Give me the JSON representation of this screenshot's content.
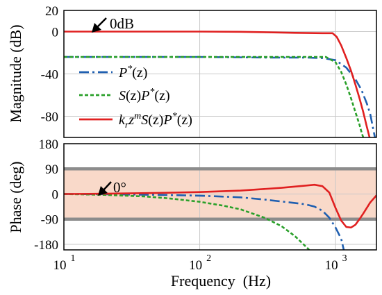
{
  "chart_data": [
    {
      "type": "line",
      "panel": "magnitude",
      "xscale": "log",
      "xlim": [
        10,
        2000
      ],
      "ylim": [
        -100,
        20
      ],
      "yticks": [
        20,
        0,
        -40,
        -80
      ],
      "ylabel": "Magnitude (dB)",
      "grid": true,
      "legend_position": "left",
      "annotation": "0dB",
      "series": [
        {
          "name": "P*(z)",
          "legend_parts": [
            [
              "P",
              ""
            ],
            [
              "*",
              "sup"
            ],
            [
              "(z)",
              ""
            ]
          ],
          "color": "#1f5fb0",
          "style": "dashdot",
          "points": [
            [
              10,
              -24
            ],
            [
              100,
              -24
            ],
            [
              300,
              -24.5
            ],
            [
              600,
              -24.5
            ],
            [
              800,
              -25
            ],
            [
              1000,
              -27
            ],
            [
              1200,
              -34
            ],
            [
              1400,
              -45
            ],
            [
              1550,
              -55
            ],
            [
              1700,
              -68
            ],
            [
              1800,
              -78
            ],
            [
              1880,
              -90
            ],
            [
              1950,
              -100
            ]
          ]
        },
        {
          "name": "S(z)P*(z)",
          "legend_parts": [
            [
              "S",
              ""
            ],
            [
              "(z)",
              ""
            ],
            [
              "P",
              ""
            ],
            [
              "*",
              "sup"
            ],
            [
              "(z)",
              ""
            ]
          ],
          "color": "#2aa02a",
          "style": "dotted",
          "points": [
            [
              10,
              -24
            ],
            [
              100,
              -24
            ],
            [
              300,
              -24
            ],
            [
              600,
              -24
            ],
            [
              850,
              -24
            ],
            [
              1000,
              -29
            ],
            [
              1100,
              -38
            ],
            [
              1200,
              -50
            ],
            [
              1300,
              -63
            ],
            [
              1400,
              -76
            ],
            [
              1500,
              -88
            ],
            [
              1560,
              -96
            ],
            [
              1600,
              -100
            ]
          ]
        },
        {
          "name": "k_r z^m S(z)P*(z)",
          "legend_parts": [
            [
              "k",
              ""
            ],
            [
              "r",
              "sub"
            ],
            [
              "z",
              ""
            ],
            [
              "m",
              "sup"
            ],
            [
              "S",
              ""
            ],
            [
              "(z)",
              ""
            ],
            [
              "P",
              ""
            ],
            [
              "*",
              "sup"
            ],
            [
              "(z)",
              ""
            ]
          ],
          "color": "#e02020",
          "style": "solid",
          "points": [
            [
              10,
              0
            ],
            [
              100,
              0
            ],
            [
              200,
              -0.2
            ],
            [
              500,
              -1.2
            ],
            [
              800,
              -1.5
            ],
            [
              950,
              -1.5
            ],
            [
              1020,
              -5
            ],
            [
              1100,
              -13
            ],
            [
              1200,
              -25
            ],
            [
              1300,
              -37
            ],
            [
              1400,
              -50
            ],
            [
              1500,
              -63
            ],
            [
              1600,
              -76
            ],
            [
              1700,
              -90
            ],
            [
              1780,
              -100
            ]
          ]
        }
      ]
    },
    {
      "type": "line",
      "panel": "phase",
      "xscale": "log",
      "xlim": [
        10,
        2000
      ],
      "ylim": [
        -200,
        180
      ],
      "yticks": [
        180,
        90,
        0,
        -90,
        -180
      ],
      "ylabel": "Phase (deg)",
      "xlabel": "Frequency  (Hz)",
      "xticks": [
        {
          "value": 10,
          "label": "10",
          "exp": "1"
        },
        {
          "value": 100,
          "label": "10",
          "exp": "2"
        },
        {
          "value": 1000,
          "label": "10",
          "exp": "3"
        }
      ],
      "grid": true,
      "shaded_band": [
        -90,
        90
      ],
      "reference_lines": [
        90,
        -90
      ],
      "annotation": "0°",
      "series": [
        {
          "name": "P*(z)",
          "color": "#1f5fb0",
          "style": "dashdot",
          "points": [
            [
              10,
              0
            ],
            [
              20,
              -1
            ],
            [
              50,
              -3
            ],
            [
              100,
              -6
            ],
            [
              200,
              -12
            ],
            [
              300,
              -20
            ],
            [
              400,
              -27
            ],
            [
              500,
              -32
            ],
            [
              600,
              -37
            ],
            [
              700,
              -45
            ],
            [
              800,
              -60
            ],
            [
              900,
              -85
            ],
            [
              1000,
              -120
            ],
            [
              1100,
              -160
            ],
            [
              1150,
              -200
            ]
          ]
        },
        {
          "name": "S(z)P*(z)",
          "color": "#2aa02a",
          "style": "dotted",
          "points": [
            [
              10,
              0
            ],
            [
              20,
              -3
            ],
            [
              40,
              -9
            ],
            [
              60,
              -16
            ],
            [
              100,
              -28
            ],
            [
              150,
              -42
            ],
            [
              200,
              -55
            ],
            [
              300,
              -85
            ],
            [
              400,
              -115
            ],
            [
              500,
              -150
            ],
            [
              580,
              -180
            ],
            [
              640,
              -200
            ]
          ]
        },
        {
          "name": "k_r z^m S(z)P*(z)",
          "color": "#e02020",
          "style": "solid",
          "points": [
            [
              10,
              0
            ],
            [
              20,
              1
            ],
            [
              50,
              4
            ],
            [
              100,
              7
            ],
            [
              200,
              12
            ],
            [
              400,
              22
            ],
            [
              600,
              30
            ],
            [
              700,
              33
            ],
            [
              800,
              28
            ],
            [
              900,
              5
            ],
            [
              1000,
              -50
            ],
            [
              1100,
              -95
            ],
            [
              1200,
              -118
            ],
            [
              1300,
              -120
            ],
            [
              1400,
              -110
            ],
            [
              1500,
              -90
            ],
            [
              1600,
              -70
            ],
            [
              1800,
              -30
            ],
            [
              2000,
              -5
            ]
          ]
        }
      ]
    }
  ]
}
